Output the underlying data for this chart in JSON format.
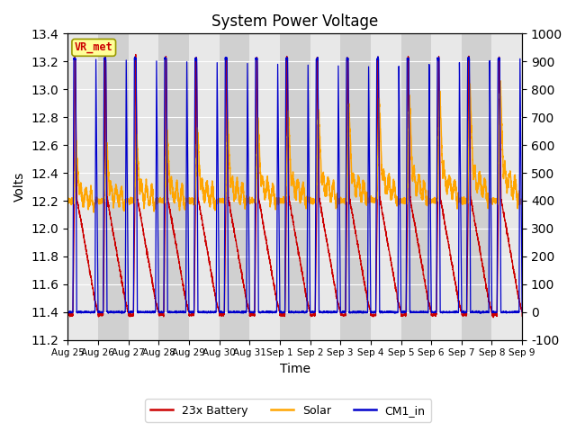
{
  "title": "System Power Voltage",
  "xlabel": "Time",
  "ylabel_left": "Volts",
  "ylim_left": [
    11.2,
    13.4
  ],
  "ylim_right": [
    -100,
    1000
  ],
  "yticks_left": [
    11.2,
    11.4,
    11.6,
    11.8,
    12.0,
    12.2,
    12.4,
    12.6,
    12.8,
    13.0,
    13.2,
    13.4
  ],
  "yticks_right": [
    -100,
    0,
    100,
    200,
    300,
    400,
    500,
    600,
    700,
    800,
    900,
    1000
  ],
  "xtick_labels": [
    "Aug 25",
    "Aug 26",
    "Aug 27",
    "Aug 28",
    "Aug 29",
    "Aug 30",
    "Aug 31",
    "Sep 1",
    "Sep 2",
    "Sep 3",
    "Sep 4",
    "Sep 5",
    "Sep 6",
    "Sep 7",
    "Sep 8",
    "Sep 9"
  ],
  "n_days": 15,
  "battery_color": "#cc0000",
  "solar_color": "#ffa500",
  "cm1_color": "#0000cc",
  "background_color_light": "#e8e8e8",
  "background_color_dark": "#d0d0d0",
  "vr_met_label": "VR_met",
  "vr_met_box_color": "#ffff99",
  "vr_met_text_color": "#cc0000",
  "legend_labels": [
    "23x Battery",
    "Solar",
    "CM1_in"
  ],
  "ppd": 300,
  "battery_min": 11.38,
  "battery_peak": 13.22,
  "battery_day": 12.22,
  "solar_night": 12.2,
  "solar_peak": 13.1,
  "cm1_min": 11.4,
  "cm1_max": 13.22
}
